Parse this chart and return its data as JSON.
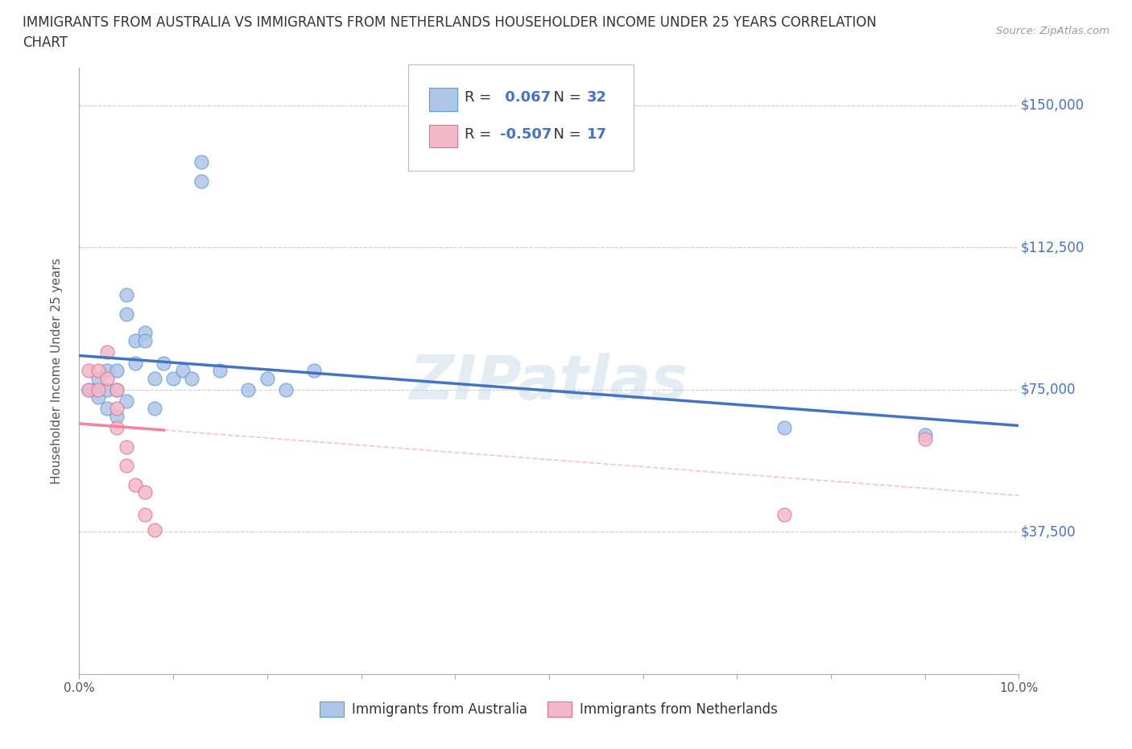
{
  "title_line1": "IMMIGRANTS FROM AUSTRALIA VS IMMIGRANTS FROM NETHERLANDS HOUSEHOLDER INCOME UNDER 25 YEARS CORRELATION",
  "title_line2": "CHART",
  "source": "Source: ZipAtlas.com",
  "ylabel": "Householder Income Under 25 years",
  "xlim": [
    0.0,
    0.1
  ],
  "ylim": [
    0,
    160000
  ],
  "ytick_values": [
    0,
    37500,
    75000,
    112500,
    150000
  ],
  "ytick_labels": [
    "",
    "$37,500",
    "$75,000",
    "$112,500",
    "$150,000"
  ],
  "xtick_values": [
    0.0,
    0.01,
    0.02,
    0.03,
    0.04,
    0.05,
    0.06,
    0.07,
    0.08,
    0.09,
    0.1
  ],
  "xtick_labels_show": {
    "0.0": "0.0%",
    "0.1": "10.0%"
  },
  "australia_color": "#aec6e8",
  "netherlands_color": "#f4b8c8",
  "aus_edge_color": "#5b9bd5",
  "ned_edge_color": "#e07090",
  "trend_aus_color": "#4472c4",
  "trend_ned_color": "#f4829a",
  "R_aus": 0.067,
  "N_aus": 32,
  "R_ned": -0.507,
  "N_ned": 17,
  "watermark": "ZIPatlas",
  "legend_label_aus": "Immigrants from Australia",
  "legend_label_ned": "Immigrants from Netherlands",
  "aus_x": [
    0.001,
    0.0015,
    0.002,
    0.0025,
    0.003,
    0.003,
    0.004,
    0.004,
    0.004,
    0.005,
    0.005,
    0.005,
    0.006,
    0.006,
    0.007,
    0.007,
    0.008,
    0.008,
    0.009,
    0.01,
    0.01,
    0.011,
    0.012,
    0.013,
    0.014,
    0.015,
    0.016,
    0.017,
    0.018,
    0.022,
    0.075,
    0.09
  ],
  "aus_y": [
    75000,
    75000,
    80000,
    73000,
    78000,
    70000,
    80000,
    75000,
    72000,
    100000,
    95000,
    70000,
    90000,
    85000,
    92000,
    88000,
    78000,
    70000,
    85000,
    78000,
    72000,
    80000,
    75000,
    140000,
    130000,
    80000,
    75000,
    78000,
    75000,
    82000,
    65000,
    62000
  ],
  "ned_x": [
    0.001,
    0.001,
    0.002,
    0.003,
    0.003,
    0.004,
    0.004,
    0.005,
    0.005,
    0.006,
    0.006,
    0.007,
    0.007,
    0.008,
    0.008,
    0.075,
    0.09
  ],
  "ned_y": [
    80000,
    75000,
    78000,
    85000,
    80000,
    75000,
    70000,
    65000,
    60000,
    55000,
    50000,
    48000,
    42000,
    40000,
    38000,
    45000,
    62000
  ],
  "background_color": "#ffffff",
  "grid_color": "#cccccc",
  "bubble_size": 150
}
